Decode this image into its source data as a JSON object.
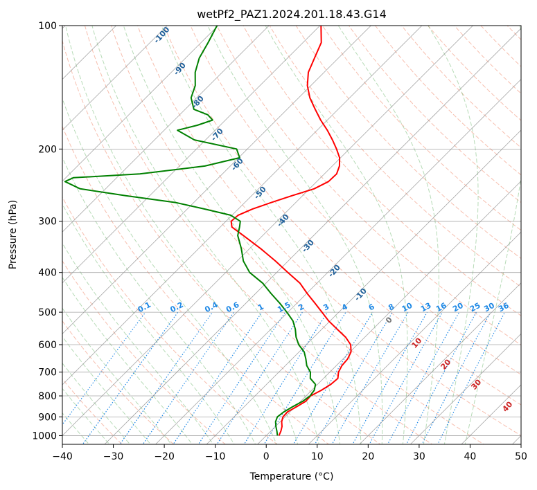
{
  "chart_data": {
    "type": "line",
    "chart_kind": "skew-t log-p",
    "title": "wetPf2_PAZ1.2024.201.18.43.G14",
    "xlabel": "Temperature (°C)",
    "ylabel": "Pressure (hPa)",
    "xlim": [
      -40,
      50
    ],
    "ylim": [
      1050,
      100
    ],
    "y_scale": "log",
    "x_ticks": [
      -40,
      -30,
      -20,
      -10,
      0,
      10,
      20,
      30,
      40,
      50
    ],
    "x_tick_labels": [
      "−40",
      "−30",
      "−20",
      "−10",
      "0",
      "10",
      "20",
      "30",
      "40",
      "50"
    ],
    "y_ticks": [
      1000,
      900,
      800,
      700,
      600,
      500,
      400,
      300,
      200,
      100
    ],
    "y_tick_labels": [
      "1000",
      "900",
      "800",
      "700",
      "600",
      "500",
      "400",
      "300",
      "200",
      "100"
    ],
    "grid": true,
    "series": [
      {
        "color": "#ff0000",
        "pressure_hPa": [
          1000,
          975,
          950,
          925,
          900,
          875,
          850,
          825,
          800,
          775,
          750,
          725,
          700,
          675,
          650,
          625,
          600,
          575,
          550,
          525,
          500,
          475,
          450,
          425,
          400,
          375,
          350,
          325,
          310,
          300,
          290,
          280,
          270,
          260,
          250,
          240,
          230,
          220,
          210,
          200,
          190,
          180,
          170,
          160,
          150,
          140,
          130,
          120,
          110,
          100
        ],
        "temperature_C": [
          2.5,
          2.0,
          1.3,
          0.3,
          -0.4,
          -0.5,
          0.3,
          1.0,
          0.9,
          1.9,
          2.6,
          2.8,
          1.7,
          1.1,
          0.9,
          0.2,
          -1.3,
          -3.8,
          -7.0,
          -10.3,
          -13.3,
          -16.5,
          -19.9,
          -23.3,
          -27.8,
          -32.5,
          -37.8,
          -43.8,
          -47.7,
          -49.0,
          -48.8,
          -47.2,
          -44.8,
          -42.1,
          -39.1,
          -37.7,
          -37.6,
          -38.6,
          -40.2,
          -42.5,
          -45.1,
          -48.0,
          -51.3,
          -54.5,
          -57.8,
          -60.7,
          -63.1,
          -64.7,
          -66.4,
          -69.8
        ]
      },
      {
        "color": "#008000",
        "pressure_hPa": [
          1000,
          975,
          950,
          925,
          900,
          875,
          850,
          825,
          800,
          775,
          750,
          725,
          700,
          675,
          650,
          625,
          600,
          575,
          550,
          525,
          500,
          475,
          450,
          425,
          400,
          375,
          350,
          325,
          310,
          300,
          290,
          280,
          270,
          260,
          250,
          240,
          235,
          230,
          220,
          210,
          200,
          190,
          180,
          175,
          170,
          165,
          160,
          150,
          140,
          130,
          120,
          110,
          100
        ],
        "temperature_C": [
          2.2,
          1.2,
          0.1,
          -0.9,
          -1.5,
          -1.2,
          -0.5,
          0.4,
          0.8,
          0.5,
          -0.4,
          -2.6,
          -3.8,
          -5.8,
          -7.3,
          -9.0,
          -11.5,
          -13.5,
          -15.2,
          -17.3,
          -20.2,
          -23.4,
          -27.0,
          -30.6,
          -35.3,
          -38.8,
          -41.6,
          -44.9,
          -46.2,
          -47.2,
          -50.3,
          -56.7,
          -63.6,
          -74.7,
          -85.0,
          -89.4,
          -88.5,
          -76.2,
          -65.0,
          -59.8,
          -62.1,
          -72.2,
          -77.4,
          -74.5,
          -72.5,
          -74.5,
          -78.3,
          -81.1,
          -82.7,
          -85.3,
          -87.3,
          -88.6,
          -90.2
        ]
      }
    ],
    "dry_adiabat_labels": [
      "-100",
      "-90",
      "-80",
      "-70",
      "-60",
      "-50",
      "-40",
      "-30",
      "-20",
      "-10"
    ],
    "moist_adiabat_labels": [
      "0",
      "10",
      "20",
      "30",
      "40"
    ],
    "mixing_ratio_labels": [
      "0.1",
      "0.2",
      "0.4",
      "0.6",
      "1",
      "1.5",
      "2",
      "3",
      "4",
      "6",
      "8",
      "10",
      "13",
      "16",
      "20",
      "25",
      "30",
      "36"
    ],
    "mixing_ratio_values": [
      0.1,
      0.2,
      0.4,
      0.6,
      1,
      1.5,
      2,
      3,
      4,
      6,
      8,
      10,
      13,
      16,
      20,
      25,
      30,
      36
    ],
    "colors": {
      "temperature": "#ff0000",
      "dewpoint": "#008000",
      "dry_adiabat": "#f08060",
      "moist_adiabat": "#60b060",
      "mixing_ratio": "#1e88e5",
      "isotherm": "#909090",
      "dry_label": "#1f5f99",
      "moist_label": "#cc2222"
    }
  }
}
